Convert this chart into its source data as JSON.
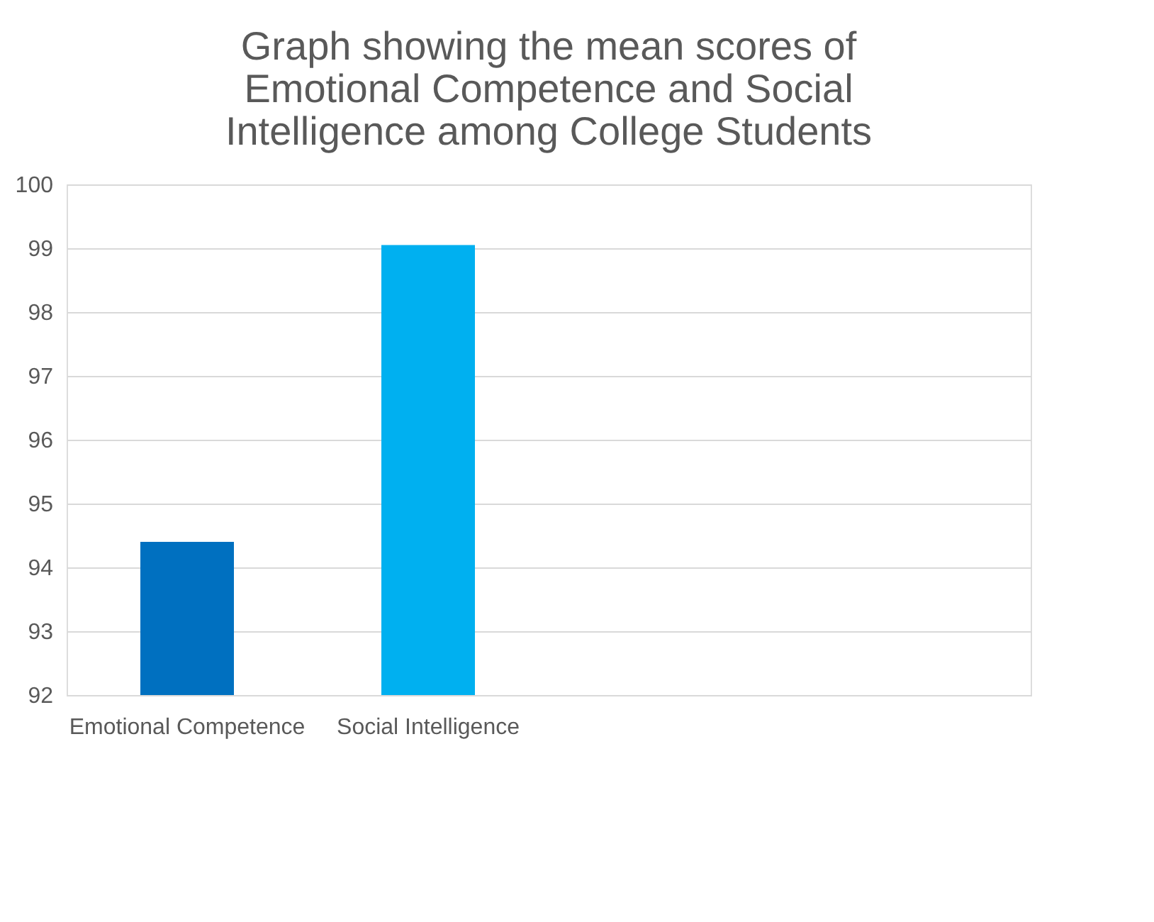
{
  "chart_data": {
    "type": "bar",
    "title": "Graph showing the mean scores of Emotional Competence and Social Intelligence among College Students",
    "categories": [
      "Emotional Competence",
      "Social Intelligence",
      null,
      null
    ],
    "values": [
      94.4,
      99.05,
      null,
      null
    ],
    "colors": [
      "#0070c0",
      "#00b0f0",
      "#0070c0",
      "#0070c0"
    ],
    "ylim": [
      92,
      100
    ],
    "yticks": [
      92,
      93,
      94,
      95,
      96,
      97,
      98,
      99,
      100
    ],
    "grid": "y"
  }
}
